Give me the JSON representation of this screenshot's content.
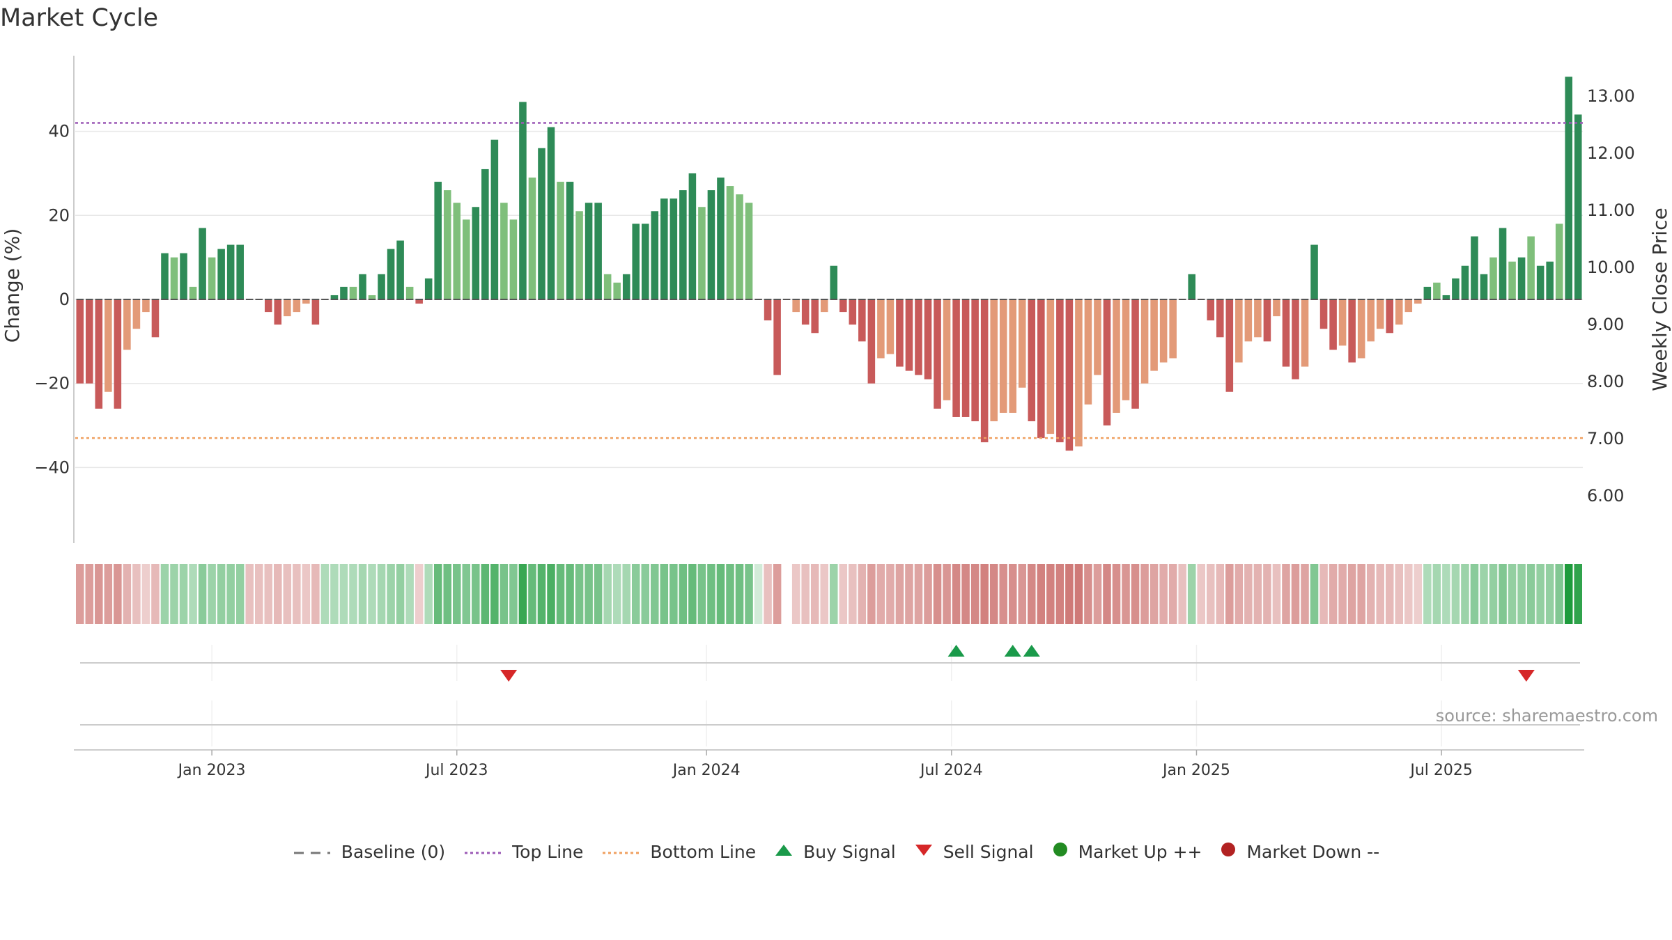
{
  "title": "Market Cycle",
  "source": "source: sharemaestro.com",
  "colors": {
    "up_dark": "#2e8b57",
    "up_light": "#7fbf7b",
    "down_dark": "#c85a5a",
    "down_light": "#e39a78",
    "top_line": "#9b59b6",
    "bottom_line": "#f0a060",
    "buy": "#1a9a4a",
    "sell": "#d62728",
    "market_up": "#228b22",
    "market_down": "#b22222",
    "baseline": "#777777"
  },
  "legend": [
    {
      "id": "baseline",
      "label": "Baseline (0)",
      "icon": "dash-line-icon"
    },
    {
      "id": "top",
      "label": "Top Line",
      "icon": "dotted-purple-line-icon"
    },
    {
      "id": "bottom",
      "label": "Bottom Line",
      "icon": "dotted-orange-line-icon"
    },
    {
      "id": "buy",
      "label": "Buy Signal",
      "icon": "up-triangle-icon"
    },
    {
      "id": "sell",
      "label": "Sell Signal",
      "icon": "down-triangle-icon"
    },
    {
      "id": "mup",
      "label": "Market Up ++",
      "icon": "green-dot-icon"
    },
    {
      "id": "mdown",
      "label": "Market Down --",
      "icon": "red-dot-icon"
    }
  ],
  "chart_data": {
    "type": "bar",
    "title": "Market Cycle",
    "ylabel": "Change (%)",
    "y2label": "Weekly Close Price",
    "ylim": [
      -58,
      58
    ],
    "yticks": [
      40,
      20,
      0,
      -20,
      -40
    ],
    "ytick_labels": [
      "40",
      "20",
      "0",
      "−20",
      "−40"
    ],
    "y2ticks": [
      "13.00",
      "12.00",
      "11.00",
      "10.00",
      "9.00",
      "8.00",
      "7.00",
      "6.00"
    ],
    "top_line": 42,
    "bottom_line": -33,
    "baseline": 0,
    "xtick_labels": [
      "Jan 2023",
      "Jul 2023",
      "Jan 2024",
      "Jul 2024",
      "Jan 2025",
      "Jul 2025"
    ],
    "xtick_index": [
      14,
      40,
      66.5,
      92.5,
      118.5,
      144.5
    ],
    "values": [
      -20,
      -20,
      -26,
      -22,
      -26,
      -12,
      -7,
      -3,
      -9,
      11,
      10,
      11,
      3,
      17,
      10,
      12,
      13,
      13,
      0,
      0,
      -3,
      -6,
      -4,
      -3,
      -1,
      -6,
      0,
      1,
      3,
      3,
      6,
      1,
      6,
      12,
      14,
      3,
      -1,
      5,
      28,
      26,
      23,
      19,
      22,
      31,
      38,
      23,
      19,
      47,
      29,
      36,
      41,
      28,
      28,
      21,
      23,
      23,
      6,
      4,
      6,
      18,
      18,
      21,
      24,
      24,
      26,
      30,
      22,
      26,
      29,
      27,
      25,
      23,
      0,
      -5,
      -18,
      0,
      -3,
      -6,
      -8,
      -3,
      8,
      -3,
      -6,
      -10,
      -20,
      -14,
      -13,
      -16,
      -17,
      -18,
      -19,
      -26,
      -24,
      -28,
      -28,
      -29,
      -34,
      -29,
      -27,
      -27,
      -21,
      -29,
      -33,
      -32,
      -34,
      -36,
      -35,
      -25,
      -18,
      -30,
      -27,
      -24,
      -26,
      -20,
      -17,
      -15,
      -14,
      0,
      6,
      0,
      -5,
      -9,
      -22,
      -15,
      -10,
      -9,
      -10,
      -4,
      -16,
      -19,
      -16,
      13,
      -7,
      -12,
      -11,
      -15,
      -14,
      -10,
      -7,
      -8,
      -6,
      -3,
      -1,
      3,
      4,
      1,
      5,
      8,
      15,
      6,
      10,
      17,
      9,
      10,
      15,
      8,
      9,
      18,
      53,
      44
    ],
    "shades": [
      "d",
      "d",
      "d",
      "l",
      "d",
      "l",
      "l",
      "l",
      "d",
      "d",
      "l",
      "d",
      "l",
      "d",
      "l",
      "d",
      "d",
      "d",
      "d",
      "d",
      "d",
      "d",
      "l",
      "l",
      "l",
      "d",
      "d",
      "d",
      "d",
      "l",
      "d",
      "l",
      "d",
      "d",
      "d",
      "l",
      "d",
      "d",
      "d",
      "l",
      "l",
      "l",
      "d",
      "d",
      "d",
      "l",
      "l",
      "d",
      "l",
      "d",
      "d",
      "l",
      "d",
      "l",
      "d",
      "d",
      "l",
      "l",
      "d",
      "d",
      "d",
      "d",
      "d",
      "d",
      "d",
      "d",
      "l",
      "d",
      "d",
      "l",
      "l",
      "l",
      "d",
      "d",
      "d",
      "d",
      "l",
      "d",
      "d",
      "l",
      "d",
      "d",
      "d",
      "d",
      "d",
      "l",
      "l",
      "d",
      "d",
      "d",
      "d",
      "d",
      "l",
      "d",
      "d",
      "d",
      "d",
      "l",
      "l",
      "l",
      "l",
      "d",
      "d",
      "l",
      "d",
      "d",
      "l",
      "l",
      "l",
      "d",
      "l",
      "l",
      "d",
      "l",
      "l",
      "l",
      "l",
      "d",
      "d",
      "d",
      "d",
      "d",
      "d",
      "l",
      "l",
      "l",
      "d",
      "l",
      "d",
      "d",
      "l",
      "d",
      "d",
      "d",
      "l",
      "d",
      "l",
      "l",
      "l",
      "d",
      "l",
      "l",
      "l",
      "d",
      "l",
      "d",
      "d",
      "d",
      "d",
      "d",
      "l",
      "d",
      "l",
      "d",
      "l",
      "d",
      "d",
      "l",
      "d",
      "d",
      "l"
    ],
    "heat_strip": [
      -0.45,
      -0.45,
      -0.5,
      -0.45,
      -0.5,
      -0.3,
      -0.2,
      -0.1,
      -0.25,
      0.3,
      0.3,
      0.3,
      0.2,
      0.4,
      0.3,
      0.35,
      0.35,
      0.35,
      -0.2,
      -0.2,
      -0.2,
      -0.25,
      -0.2,
      -0.2,
      -0.15,
      -0.25,
      0.2,
      0.2,
      0.2,
      0.2,
      0.25,
      0.2,
      0.25,
      0.3,
      0.35,
      0.2,
      -0.1,
      0.2,
      0.6,
      0.55,
      0.5,
      0.45,
      0.5,
      0.65,
      0.7,
      0.5,
      0.45,
      0.85,
      0.6,
      0.7,
      0.75,
      0.6,
      0.6,
      0.5,
      0.5,
      0.5,
      0.25,
      0.2,
      0.25,
      0.4,
      0.4,
      0.45,
      0.5,
      0.5,
      0.55,
      0.6,
      0.5,
      0.55,
      0.6,
      0.55,
      0.55,
      0.5,
      0,
      -0.2,
      -0.45,
      null,
      -0.15,
      -0.2,
      -0.25,
      -0.15,
      0.3,
      -0.15,
      -0.2,
      -0.3,
      -0.45,
      -0.35,
      -0.35,
      -0.4,
      -0.4,
      -0.4,
      -0.45,
      -0.55,
      -0.5,
      -0.6,
      -0.6,
      -0.6,
      -0.65,
      -0.6,
      -0.55,
      -0.55,
      -0.5,
      -0.6,
      -0.65,
      -0.65,
      -0.65,
      -0.7,
      -0.7,
      -0.55,
      -0.45,
      -0.6,
      -0.55,
      -0.5,
      -0.55,
      -0.45,
      -0.4,
      -0.35,
      -0.35,
      -0.2,
      0.3,
      -0.15,
      -0.2,
      -0.25,
      -0.45,
      -0.35,
      -0.3,
      -0.3,
      -0.3,
      -0.2,
      -0.4,
      -0.45,
      -0.4,
      0.45,
      -0.25,
      -0.35,
      -0.35,
      -0.4,
      -0.4,
      -0.3,
      -0.25,
      -0.25,
      -0.2,
      -0.15,
      -0.1,
      0.2,
      0.25,
      0.2,
      0.25,
      0.3,
      0.4,
      0.3,
      0.35,
      0.45,
      0.35,
      0.35,
      0.4,
      0.35,
      0.35,
      0.45,
      1,
      0.9
    ],
    "buy_signals": [
      93,
      99,
      101
    ],
    "sell_signals": [
      45.5,
      153.5
    ]
  }
}
